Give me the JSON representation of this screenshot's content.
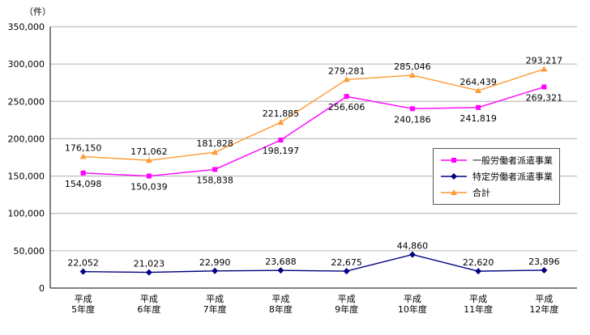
{
  "chart_data": {
    "type": "line",
    "title": "",
    "unit_label": "（件）",
    "xlabel": "",
    "ylabel": "",
    "ylim": [
      0,
      350000
    ],
    "ytick": 50000,
    "grid": true,
    "legend_position": "right-inside",
    "categories": [
      {
        "line1": "平成",
        "line2": "5年度"
      },
      {
        "line1": "平成",
        "line2": "6年度"
      },
      {
        "line1": "平成",
        "line2": "7年度"
      },
      {
        "line1": "平成",
        "line2": "8年度"
      },
      {
        "line1": "平成",
        "line2": "9年度"
      },
      {
        "line1": "平成",
        "line2": "10年度"
      },
      {
        "line1": "平成",
        "line2": "11年度"
      },
      {
        "line1": "平成",
        "line2": "12年度"
      }
    ],
    "series": [
      {
        "name": "一般労働者派遣事業",
        "color": "#FF00FF",
        "marker": "square",
        "label_position": "below",
        "values": [
          154098,
          150039,
          158838,
          198197,
          256606,
          240186,
          241819,
          269321
        ]
      },
      {
        "name": "特定労働者派遣事業",
        "color": "#000080",
        "marker": "diamond",
        "label_position": "above",
        "values": [
          22052,
          21023,
          22990,
          23688,
          22675,
          44860,
          22620,
          23896
        ]
      },
      {
        "name": "合計",
        "color": "#FF9933",
        "marker": "triangle",
        "label_position": "above",
        "values": [
          176150,
          171062,
          181828,
          221885,
          279281,
          285046,
          264439,
          293217
        ]
      }
    ],
    "axis_color": "#000000",
    "grid_color": "#b0b0b0"
  }
}
